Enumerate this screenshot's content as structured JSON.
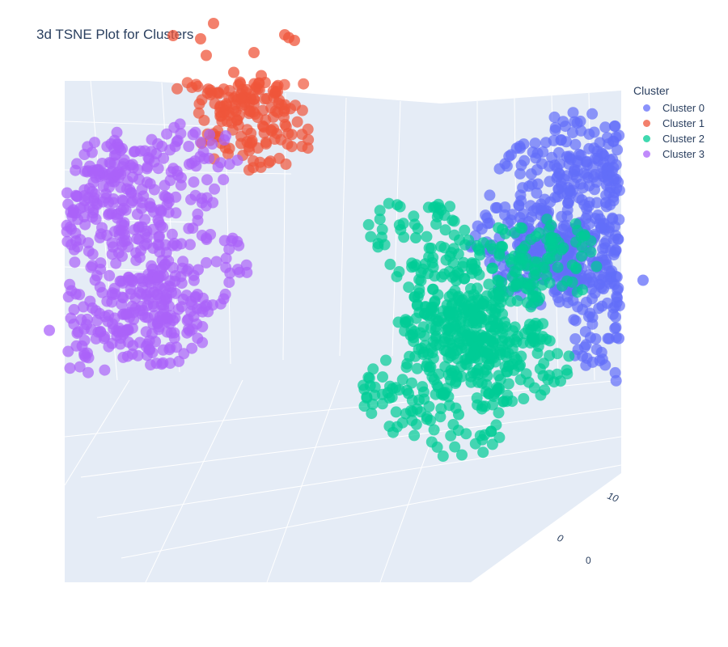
{
  "chart_data": {
    "type": "scatter",
    "subtype": "3d",
    "title": "3d TSNE Plot for Clusters",
    "legend_title": "Cluster",
    "legend_placement": "top-right",
    "grid": true,
    "background": "#e5ecf6",
    "axes": {
      "visible_tick_labels": [
        "10",
        "0",
        "0"
      ]
    },
    "series": [
      {
        "name": "Cluster 0",
        "color": "#636efa",
        "x": [
          14,
          15,
          12,
          16,
          10,
          13,
          14,
          17,
          12,
          11,
          15,
          16
        ],
        "y": [
          -2,
          1,
          3,
          -4,
          0,
          -1,
          4,
          2,
          -3,
          1,
          5,
          -5
        ],
        "z": [
          12,
          10,
          8,
          9,
          6,
          4,
          7,
          5,
          3,
          11,
          2,
          1
        ]
      },
      {
        "name": "Cluster 1",
        "color": "#ef553b",
        "x": [
          -6,
          -4,
          -8,
          -2,
          -5,
          -3,
          -7,
          -1,
          -4,
          -6,
          -2,
          -5
        ],
        "y": [
          -10,
          -8,
          -12,
          -6,
          -9,
          -11,
          -7,
          -13,
          -5,
          -14,
          -9,
          -8
        ],
        "z": [
          16,
          15,
          14,
          17,
          13,
          12,
          15,
          14,
          11,
          13,
          16,
          10
        ]
      },
      {
        "name": "Cluster 2",
        "color": "#00cc96",
        "x": [
          6,
          8,
          4,
          9,
          7,
          5,
          10,
          3,
          8,
          6,
          11,
          5
        ],
        "y": [
          2,
          4,
          0,
          6,
          -2,
          5,
          1,
          3,
          7,
          -1,
          4,
          8
        ],
        "z": [
          4,
          2,
          6,
          0,
          -2,
          3,
          5,
          -4,
          1,
          -1,
          7,
          -3
        ]
      },
      {
        "name": "Cluster 3",
        "color": "#ab63fa",
        "x": [
          -14,
          -12,
          -16,
          -10,
          -13,
          -11,
          -15,
          -9,
          -17,
          -12,
          -8,
          -14
        ],
        "y": [
          -2,
          -4,
          0,
          -6,
          2,
          -1,
          -5,
          1,
          -3,
          3,
          -7,
          -8
        ],
        "z": [
          8,
          6,
          4,
          2,
          0,
          -2,
          5,
          3,
          -4,
          1,
          7,
          -6
        ]
      }
    ]
  }
}
